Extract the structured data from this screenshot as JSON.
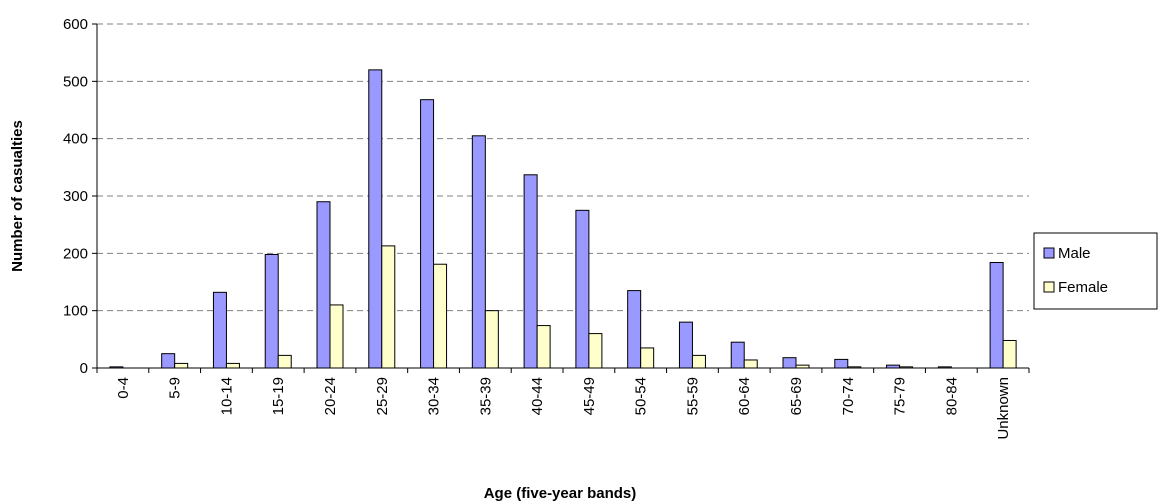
{
  "chart_data": {
    "type": "bar",
    "xlabel": "Age (five-year bands)",
    "ylabel": "Number of casualties",
    "ylim": [
      0,
      600
    ],
    "yticks": [
      0,
      100,
      200,
      300,
      400,
      500,
      600
    ],
    "grid": "horizontal dashed",
    "legend_position": "right",
    "categories": [
      "0-4",
      "5-9",
      "10-14",
      "15-19",
      "20-24",
      "25-29",
      "30-34",
      "35-39",
      "40-44",
      "45-49",
      "50-54",
      "55-59",
      "60-64",
      "65-69",
      "70-74",
      "75-79",
      "80-84",
      "Unknown"
    ],
    "series": [
      {
        "name": "Male",
        "color": "#9999ff",
        "values": [
          2,
          25,
          132,
          198,
          290,
          520,
          468,
          405,
          337,
          275,
          135,
          80,
          45,
          18,
          15,
          5,
          2,
          184
        ]
      },
      {
        "name": "Female",
        "color": "#ffffcc",
        "values": [
          0,
          8,
          8,
          22,
          110,
          213,
          181,
          100,
          74,
          60,
          35,
          22,
          14,
          5,
          2,
          2,
          0,
          48
        ]
      }
    ]
  }
}
